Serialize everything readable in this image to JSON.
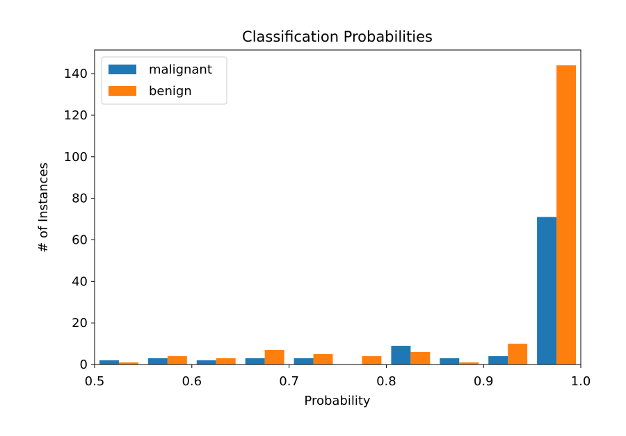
{
  "chart_data": {
    "type": "histogram",
    "title": "Classification Probabilities",
    "xlabel": "Probability",
    "ylabel": "# of Instances",
    "bins": [
      0.5,
      0.55,
      0.6,
      0.65,
      0.7,
      0.75,
      0.8,
      0.85,
      0.9,
      0.95,
      1.0
    ],
    "series": [
      {
        "name": "malignant",
        "color": "#1f77b4",
        "values": [
          2,
          3,
          2,
          3,
          3,
          0,
          9,
          3,
          4,
          71
        ]
      },
      {
        "name": "benign",
        "color": "#ff7f0e",
        "values": [
          1,
          4,
          3,
          7,
          5,
          4,
          6,
          1,
          10,
          144
        ]
      }
    ],
    "xlim": [
      0.5,
      1.0
    ],
    "xticks": [
      0.5,
      0.6,
      0.7,
      0.8,
      0.9,
      {
        "value": 1.0,
        "label": "1.0"
      }
    ],
    "ylim": [
      0,
      151.4
    ],
    "yticks": [
      0,
      20,
      40,
      60,
      80,
      100,
      120,
      140
    ],
    "legend": "upper left"
  }
}
